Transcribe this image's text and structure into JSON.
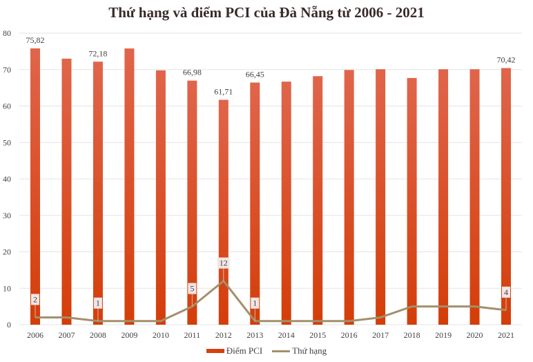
{
  "chart_data": {
    "type": "bar",
    "title": "Thứ hạng và điểm PCI của Đà Nẵng từ 2006 - 2021",
    "xlabel": "",
    "ylabel": "",
    "ylim": [
      0,
      80
    ],
    "yticks": [
      0,
      10,
      20,
      30,
      40,
      50,
      60,
      70,
      80
    ],
    "grid": true,
    "legend_position": "bottom",
    "categories": [
      "2006",
      "2007",
      "2008",
      "2009",
      "2010",
      "2011",
      "2012",
      "2013",
      "2014",
      "2015",
      "2016",
      "2017",
      "2018",
      "2019",
      "2020",
      "2021"
    ],
    "series": [
      {
        "name": "Điểm PCI",
        "type": "bar",
        "color": "#d5410e",
        "values": [
          75.82,
          73.0,
          72.18,
          75.8,
          69.8,
          66.98,
          61.71,
          66.45,
          66.7,
          68.2,
          69.9,
          70.1,
          67.7,
          70.1,
          70.1,
          70.42
        ],
        "data_labels": {
          "0": "75,82",
          "2": "72,18",
          "5": "66,98",
          "6": "61,71",
          "7": "66,45",
          "15": "70,42"
        }
      },
      {
        "name": "Thứ hạng",
        "type": "line",
        "color": "#a38f6b",
        "values": [
          2,
          2,
          1,
          1,
          1,
          5,
          12,
          1,
          1,
          1,
          1,
          2,
          5,
          5,
          5,
          4
        ],
        "data_labels": {
          "0": "2",
          "2": "1",
          "5": "5",
          "6": "12",
          "7": "1",
          "15": "4"
        }
      }
    ]
  },
  "legend": {
    "bar_label": "Điểm PCI",
    "line_label": "Thứ hạng"
  }
}
